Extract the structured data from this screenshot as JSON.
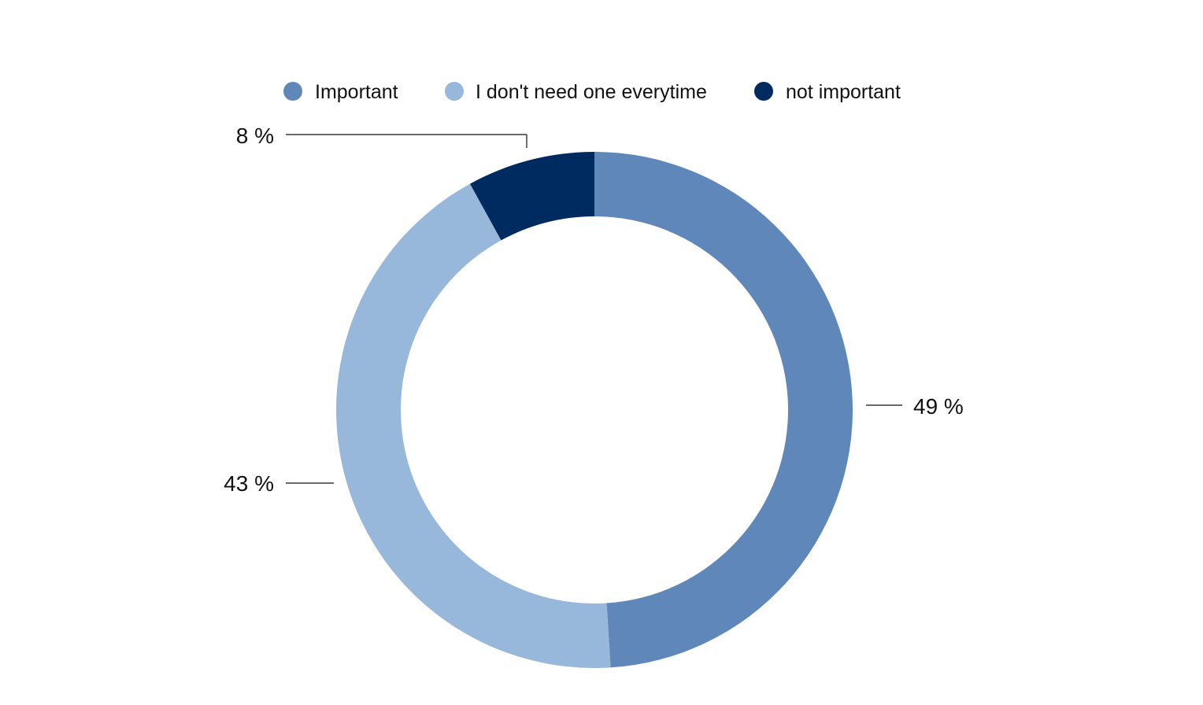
{
  "chart_data": {
    "type": "pie",
    "variant": "donut",
    "categories": [
      "Important",
      "I don't need one everytime",
      "not important"
    ],
    "values": [
      49,
      43,
      8
    ],
    "value_labels": [
      "49 %",
      "43 %",
      "8 %"
    ],
    "colors": [
      "#5f87b9",
      "#97b8db",
      "#002b61"
    ],
    "legend": {
      "placement": "top",
      "entries": [
        "Important",
        "I don't need one everytime",
        "not important"
      ]
    },
    "title": "",
    "start": "12 o'clock",
    "direction": "clockwise"
  }
}
